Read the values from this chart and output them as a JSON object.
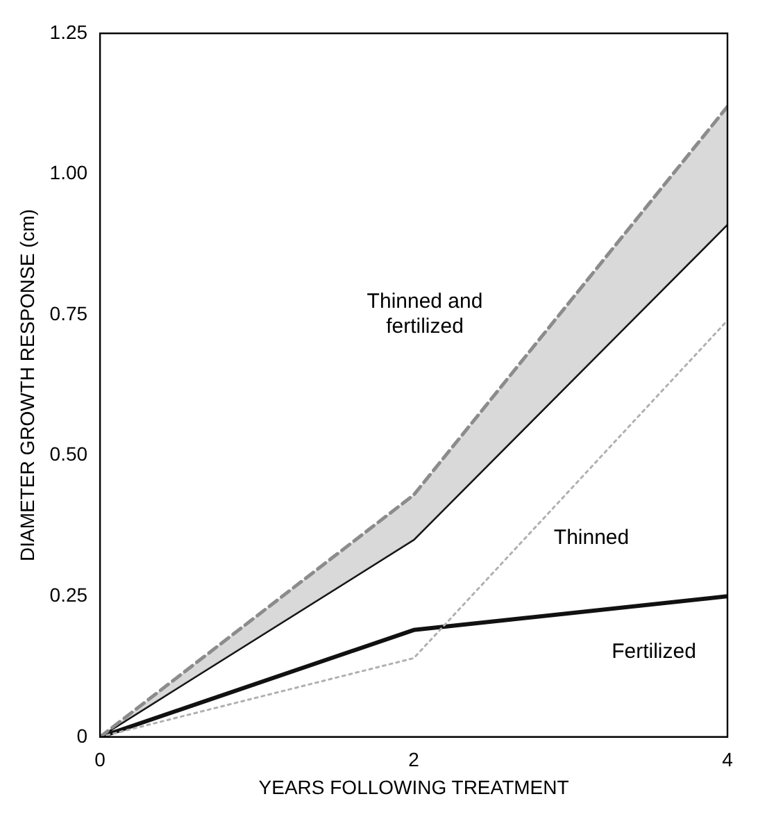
{
  "chart_data": {
    "type": "line",
    "xlabel": "YEARS FOLLOWING TREATMENT",
    "ylabel": "DIAMETER GROWTH RESPONSE (cm)",
    "x": [
      0,
      2,
      4
    ],
    "xlim": [
      0,
      4
    ],
    "xticks": [
      0,
      2,
      4
    ],
    "ylim": [
      0,
      1.25
    ],
    "yticks": [
      {
        "value": 0,
        "label": "0"
      },
      {
        "value": 0.25,
        "label": "0.25"
      },
      {
        "value": 0.5,
        "label": "0.50"
      },
      {
        "value": 0.75,
        "label": "0.75"
      },
      {
        "value": 1,
        "label": "1.00"
      },
      {
        "value": 1.25,
        "label": "1.25"
      }
    ],
    "grid": false,
    "legend": false,
    "marker": "none",
    "series": [
      {
        "name": "Thinned and fertilized",
        "color": "#8c8c8c",
        "line_style": "dashed",
        "values": [
          0,
          0.43,
          1.12
        ],
        "lower": [
          0,
          0.35,
          0.91
        ],
        "upper": [
          0,
          0.43,
          1.12
        ]
      },
      {
        "color": "#000000",
        "line_style": "solid",
        "values": [
          0,
          0.35,
          0.91
        ]
      },
      {
        "name": "Thinned",
        "color": "#b0b0b0",
        "line_style": "dotted",
        "values": [
          0,
          0.14,
          0.74
        ]
      },
      {
        "name": "Fertilized",
        "color": "#111111",
        "line_style": "solid",
        "values": [
          0,
          0.19,
          0.25
        ]
      }
    ]
  }
}
